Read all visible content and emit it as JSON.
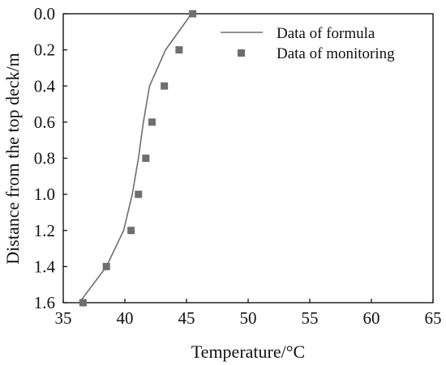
{
  "chart_data": {
    "type": "line",
    "xlabel": "Temperature/°C",
    "ylabel": "Distance from the top deck/m",
    "xlim": [
      35,
      65
    ],
    "ylim": [
      1.6,
      0.0
    ],
    "y_axis_inverted": true,
    "x_ticks": [
      "35",
      "40",
      "45",
      "50",
      "55",
      "60",
      "65"
    ],
    "y_ticks": [
      "0.0",
      "0.2",
      "0.4",
      "0.6",
      "0.8",
      "1.0",
      "1.2",
      "1.4",
      "1.6"
    ],
    "grid": false,
    "legend_position": "top-right",
    "series": [
      {
        "name": "Data of formula",
        "kind": "line",
        "color": "#6e6e6e",
        "points": [
          {
            "x": 45.4,
            "y": 0.0
          },
          {
            "x": 43.3,
            "y": 0.2
          },
          {
            "x": 42.0,
            "y": 0.4
          },
          {
            "x": 41.5,
            "y": 0.6
          },
          {
            "x": 41.1,
            "y": 0.8
          },
          {
            "x": 40.6,
            "y": 1.0
          },
          {
            "x": 39.9,
            "y": 1.2
          },
          {
            "x": 38.5,
            "y": 1.4
          },
          {
            "x": 36.3,
            "y": 1.6
          }
        ]
      },
      {
        "name": "Data of monitoring",
        "kind": "scatter",
        "marker": "square",
        "color": "#6e6e6e",
        "points": [
          {
            "x": 45.5,
            "y": 0.0
          },
          {
            "x": 44.4,
            "y": 0.2
          },
          {
            "x": 43.2,
            "y": 0.4
          },
          {
            "x": 42.2,
            "y": 0.6
          },
          {
            "x": 41.7,
            "y": 0.8
          },
          {
            "x": 41.1,
            "y": 1.0
          },
          {
            "x": 40.5,
            "y": 1.2
          },
          {
            "x": 38.5,
            "y": 1.4
          },
          {
            "x": 36.6,
            "y": 1.6
          }
        ]
      }
    ]
  }
}
